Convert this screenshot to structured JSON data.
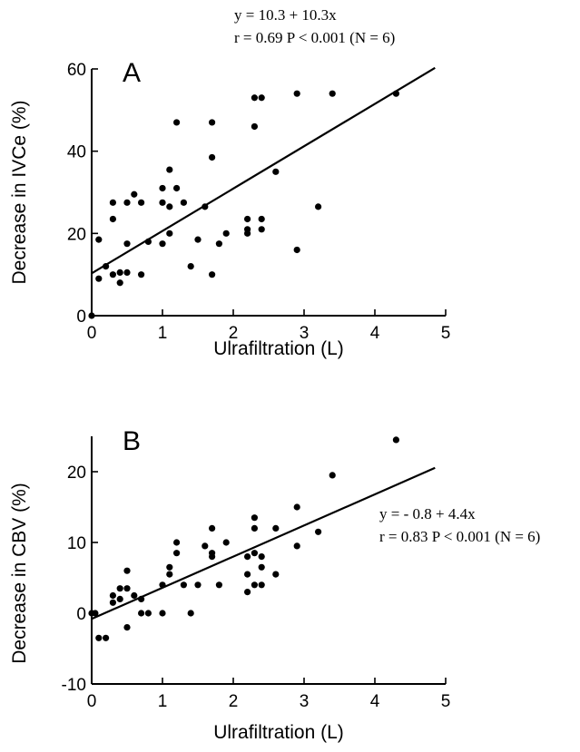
{
  "chart_data": [
    {
      "type": "scatter",
      "panel_label": "A",
      "xlabel": "Ulrafiltration (L)",
      "ylabel": "Decrease in IVCe (%)",
      "xlim": [
        0,
        5
      ],
      "ylim": [
        0,
        60
      ],
      "xticks": [
        0,
        1,
        2,
        3,
        4,
        5
      ],
      "yticks": [
        0,
        20,
        40,
        60
      ],
      "annotation_lines": [
        "y = 10.3 + 10.3x",
        "r = 0.69   P < 0.001 (N = 6)"
      ],
      "fit_line": {
        "intercept": 10.3,
        "slope": 10.3
      },
      "points": [
        [
          0,
          0
        ],
        [
          0.1,
          18.5
        ],
        [
          0.1,
          9
        ],
        [
          0.2,
          12
        ],
        [
          0.3,
          27.5
        ],
        [
          0.3,
          23.5
        ],
        [
          0.3,
          10
        ],
        [
          0.4,
          10.5
        ],
        [
          0.4,
          8
        ],
        [
          0.5,
          27.5
        ],
        [
          0.5,
          17.5
        ],
        [
          0.5,
          10.5
        ],
        [
          0.6,
          29.5
        ],
        [
          0.7,
          27.5
        ],
        [
          0.7,
          10
        ],
        [
          0.8,
          18
        ],
        [
          1.0,
          31
        ],
        [
          1.0,
          27.5
        ],
        [
          1.0,
          17.5
        ],
        [
          1.1,
          35.5
        ],
        [
          1.1,
          26.5
        ],
        [
          1.1,
          20
        ],
        [
          1.2,
          47
        ],
        [
          1.2,
          31
        ],
        [
          1.3,
          27.5
        ],
        [
          1.4,
          12
        ],
        [
          1.5,
          18.5
        ],
        [
          1.6,
          26.5
        ],
        [
          1.7,
          47
        ],
        [
          1.7,
          38.5
        ],
        [
          1.7,
          10
        ],
        [
          1.8,
          17.5
        ],
        [
          1.9,
          20
        ],
        [
          2.2,
          23.5
        ],
        [
          2.2,
          21
        ],
        [
          2.2,
          20
        ],
        [
          2.3,
          53
        ],
        [
          2.3,
          46
        ],
        [
          2.4,
          53
        ],
        [
          2.4,
          23.5
        ],
        [
          2.4,
          21
        ],
        [
          2.6,
          35
        ],
        [
          2.9,
          54
        ],
        [
          2.9,
          16
        ],
        [
          3.2,
          26.5
        ],
        [
          3.4,
          54
        ],
        [
          4.3,
          54
        ]
      ]
    },
    {
      "type": "scatter",
      "panel_label": "B",
      "xlabel": "Ulrafiltration (L)",
      "ylabel": "Decrease in CBV (%)",
      "xlim": [
        0,
        5
      ],
      "ylim": [
        -10,
        25
      ],
      "xticks": [
        0,
        1,
        2,
        3,
        4,
        5
      ],
      "yticks": [
        -10,
        0,
        10,
        20
      ],
      "annotation_lines": [
        "y =  - 0.8 + 4.4x",
        "r = 0.83   P < 0.001 (N = 6)"
      ],
      "fit_line": {
        "intercept": -0.8,
        "slope": 4.4
      },
      "points": [
        [
          0,
          0
        ],
        [
          0.05,
          0
        ],
        [
          0.1,
          -3.5
        ],
        [
          0.2,
          -3.5
        ],
        [
          0.3,
          2.5
        ],
        [
          0.3,
          1.5
        ],
        [
          0.4,
          3.5
        ],
        [
          0.4,
          2
        ],
        [
          0.5,
          6
        ],
        [
          0.5,
          3.5
        ],
        [
          0.5,
          -2
        ],
        [
          0.6,
          2.5
        ],
        [
          0.7,
          2
        ],
        [
          0.7,
          0
        ],
        [
          0.8,
          0
        ],
        [
          1.0,
          4
        ],
        [
          1.0,
          0
        ],
        [
          1.1,
          6.5
        ],
        [
          1.1,
          5.5
        ],
        [
          1.2,
          10
        ],
        [
          1.2,
          8.5
        ],
        [
          1.3,
          4
        ],
        [
          1.4,
          0
        ],
        [
          1.5,
          4
        ],
        [
          1.6,
          9.5
        ],
        [
          1.7,
          12
        ],
        [
          1.7,
          8.5
        ],
        [
          1.7,
          8
        ],
        [
          1.8,
          4
        ],
        [
          1.9,
          10
        ],
        [
          2.2,
          8
        ],
        [
          2.2,
          5.5
        ],
        [
          2.2,
          3
        ],
        [
          2.3,
          13.5
        ],
        [
          2.3,
          12
        ],
        [
          2.3,
          8.5
        ],
        [
          2.3,
          4
        ],
        [
          2.4,
          8
        ],
        [
          2.4,
          6.5
        ],
        [
          2.4,
          4
        ],
        [
          2.6,
          12
        ],
        [
          2.6,
          5.5
        ],
        [
          2.9,
          15
        ],
        [
          2.9,
          9.5
        ],
        [
          3.2,
          11.5
        ],
        [
          3.4,
          19.5
        ],
        [
          4.3,
          24.5
        ]
      ]
    }
  ]
}
